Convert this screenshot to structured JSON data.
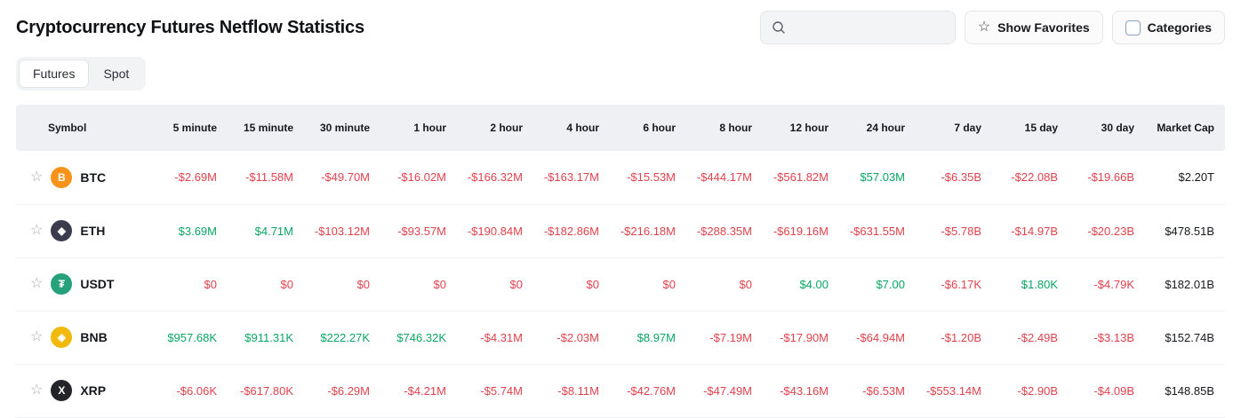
{
  "header": {
    "title": "Cryptocurrency Futures Netflow Statistics"
  },
  "toolbar": {
    "search_placeholder": "",
    "show_favorites": "Show Favorites",
    "categories": "Categories"
  },
  "tabs": {
    "futures": "Futures",
    "spot": "Spot",
    "active": "Futures"
  },
  "theme": {
    "negative": "#e0424d",
    "positive": "#0aa564",
    "neutral_text": "#16181d",
    "header_bg": "#eef0f3"
  },
  "table": {
    "columns": [
      "Symbol",
      "5 minute",
      "15 minute",
      "30 minute",
      "1 hour",
      "2 hour",
      "4 hour",
      "6 hour",
      "8 hour",
      "12 hour",
      "24 hour",
      "7 day",
      "15 day",
      "30 day",
      "Market Cap"
    ],
    "rows": [
      {
        "symbol": "BTC",
        "icon": {
          "name": "btc-coin-icon",
          "glyph": "B",
          "bg": "#f7931a",
          "fg": "#ffffff"
        },
        "values": [
          "-$2.69M",
          "-$11.58M",
          "-$49.70M",
          "-$16.02M",
          "-$166.32M",
          "-$163.17M",
          "-$15.53M",
          "-$444.17M",
          "-$561.82M",
          "$57.03M",
          "-$6.35B",
          "-$22.08B",
          "-$19.66B",
          "$2.20T"
        ],
        "colors": [
          "neg",
          "neg",
          "neg",
          "neg",
          "neg",
          "neg",
          "neg",
          "neg",
          "neg",
          "pos",
          "neg",
          "neg",
          "neg",
          "flat"
        ]
      },
      {
        "symbol": "ETH",
        "icon": {
          "name": "eth-coin-icon",
          "glyph": "◆",
          "bg": "#3b3d4e",
          "fg": "#ffffff"
        },
        "values": [
          "$3.69M",
          "$4.71M",
          "-$103.12M",
          "-$93.57M",
          "-$190.84M",
          "-$182.86M",
          "-$216.18M",
          "-$288.35M",
          "-$619.16M",
          "-$631.55M",
          "-$5.78B",
          "-$14.97B",
          "-$20.23B",
          "$478.51B"
        ],
        "colors": [
          "pos",
          "pos",
          "neg",
          "neg",
          "neg",
          "neg",
          "neg",
          "neg",
          "neg",
          "neg",
          "neg",
          "neg",
          "neg",
          "flat"
        ]
      },
      {
        "symbol": "USDT",
        "icon": {
          "name": "usdt-coin-icon",
          "glyph": "₮",
          "bg": "#26a17b",
          "fg": "#ffffff"
        },
        "values": [
          "$0",
          "$0",
          "$0",
          "$0",
          "$0",
          "$0",
          "$0",
          "$0",
          "$4.00",
          "$7.00",
          "-$6.17K",
          "$1.80K",
          "-$4.79K",
          "$182.01B"
        ],
        "colors": [
          "neg",
          "neg",
          "neg",
          "neg",
          "neg",
          "neg",
          "neg",
          "neg",
          "pos",
          "pos",
          "neg",
          "pos",
          "neg",
          "flat"
        ]
      },
      {
        "symbol": "BNB",
        "icon": {
          "name": "bnb-coin-icon",
          "glyph": "◈",
          "bg": "#f0b90b",
          "fg": "#ffffff"
        },
        "values": [
          "$957.68K",
          "$911.31K",
          "$222.27K",
          "$746.32K",
          "-$4.31M",
          "-$2.03M",
          "$8.97M",
          "-$7.19M",
          "-$17.90M",
          "-$64.94M",
          "-$1.20B",
          "-$2.49B",
          "-$3.13B",
          "$152.74B"
        ],
        "colors": [
          "pos",
          "pos",
          "pos",
          "pos",
          "neg",
          "neg",
          "pos",
          "neg",
          "neg",
          "neg",
          "neg",
          "neg",
          "neg",
          "flat"
        ]
      },
      {
        "symbol": "XRP",
        "icon": {
          "name": "xrp-coin-icon",
          "glyph": "X",
          "bg": "#23252a",
          "fg": "#ffffff"
        },
        "values": [
          "-$6.06K",
          "-$617.80K",
          "-$6.29M",
          "-$4.21M",
          "-$5.74M",
          "-$8.11M",
          "-$42.76M",
          "-$47.49M",
          "-$43.16M",
          "-$6.53M",
          "-$553.14M",
          "-$2.90B",
          "-$4.09B",
          "$148.85B"
        ],
        "colors": [
          "neg",
          "neg",
          "neg",
          "neg",
          "neg",
          "neg",
          "neg",
          "neg",
          "neg",
          "neg",
          "neg",
          "neg",
          "neg",
          "flat"
        ]
      }
    ]
  }
}
